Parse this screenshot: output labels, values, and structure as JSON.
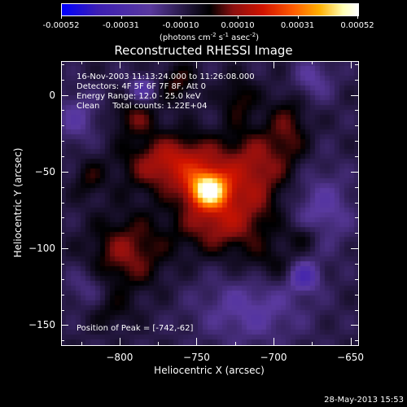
{
  "title": "Reconstructed RHESSI Image",
  "colorbar": {
    "tick_labels": [
      "-0.00052",
      "-0.00031",
      "-0.00010",
      "0.00010",
      "0.00031",
      "0.00052"
    ],
    "unit_parts": [
      "(photons cm",
      "-2",
      " s",
      "-1",
      " asec",
      "-2",
      ")"
    ]
  },
  "info_lines": [
    "16-Nov-2003 11:13:24.000 to 11:26:08.000",
    "Detectors: 4F 5F 6F 7F 8F, Att 0",
    "Energy Range: 12.0 - 25.0 keV",
    "Clean     Total counts: 1.22E+04"
  ],
  "peak_label": "Position of Peak = [-742,-62]",
  "footer_date": "28-May-2013 15:53",
  "chart_data": {
    "type": "heatmap",
    "title": "Reconstructed RHESSI Image",
    "xlabel": "Heliocentric X (arcsec)",
    "ylabel": "Heliocentric Y (arcsec)",
    "xlim": [
      -838,
      -645
    ],
    "ylim": [
      -163,
      22
    ],
    "x_ticks": [
      -800,
      -750,
      -700,
      -650
    ],
    "y_ticks": [
      0,
      -50,
      -100,
      -150
    ],
    "x_tick_labels": [
      "−800",
      "−750",
      "−700",
      "−650"
    ],
    "y_tick_labels": [
      "0",
      "−50",
      "−100",
      "−150"
    ],
    "value_range": [
      -0.00052,
      0.00052
    ],
    "colorbar_ticks": [
      -0.00052,
      -0.00031,
      -0.0001,
      0.0001,
      0.00031,
      0.00052
    ],
    "peak_position": [
      -742,
      -62
    ],
    "colormap": [
      "#0000ff",
      "#3d1fb4",
      "#5a3a9e",
      "#000000",
      "#8c1010",
      "#d21400",
      "#ff5a00",
      "#ffb000",
      "#ffffb4",
      "#ffffff"
    ],
    "sources": [
      {
        "x": -742,
        "y": -62,
        "sx": 9,
        "sy": 8,
        "amp": 0.00052
      },
      {
        "x": -762,
        "y": -45,
        "sx": 23,
        "sy": 13,
        "amp": 0.00026
      },
      {
        "x": -735,
        "y": -83,
        "sx": 20,
        "sy": 14,
        "amp": 0.0002
      },
      {
        "x": -712,
        "y": -50,
        "sx": 14,
        "sy": 20,
        "amp": 0.00018
      },
      {
        "x": -795,
        "y": -103,
        "sx": 17,
        "sy": 17,
        "amp": 0.00017
      },
      {
        "x": -790,
        "y": -15,
        "sx": 10,
        "sy": 8,
        "amp": 0.00013
      },
      {
        "x": -762,
        "y": 8,
        "sx": 8,
        "sy": 9,
        "amp": 0.00012
      },
      {
        "x": -690,
        "y": -22,
        "sx": 9,
        "sy": 18,
        "amp": 0.00012
      },
      {
        "x": -723,
        "y": -2,
        "sx": 8,
        "sy": 10,
        "amp": 0.00011
      },
      {
        "x": -680,
        "y": -92,
        "sx": 8,
        "sy": 6,
        "amp": 0.0001
      },
      {
        "x": -700,
        "y": -110,
        "sx": 15,
        "sy": 10,
        "amp": 8e-05
      },
      {
        "x": -820,
        "y": -55,
        "sx": 7,
        "sy": 9,
        "amp": 9e-05
      },
      {
        "x": -805,
        "y": -142,
        "sx": 10,
        "sy": 8,
        "amp": 7e-05
      },
      {
        "x": -785,
        "y": 4,
        "sx": 6,
        "sy": 6,
        "amp": -0.00016
      },
      {
        "x": -680,
        "y": -118,
        "sx": 7,
        "sy": 7,
        "amp": -0.00022
      },
      {
        "x": -675,
        "y": 10,
        "sx": 10,
        "sy": 10,
        "amp": -0.00012
      },
      {
        "x": -668,
        "y": -75,
        "sx": 14,
        "sy": 18,
        "amp": -0.00013
      },
      {
        "x": -715,
        "y": -140,
        "sx": 25,
        "sy": 16,
        "amp": -0.00013
      },
      {
        "x": -828,
        "y": -15,
        "sx": 10,
        "sy": 12,
        "amp": -0.00012
      },
      {
        "x": -822,
        "y": -125,
        "sx": 9,
        "sy": 9,
        "amp": -9e-05
      }
    ],
    "background": -9e-05
  }
}
